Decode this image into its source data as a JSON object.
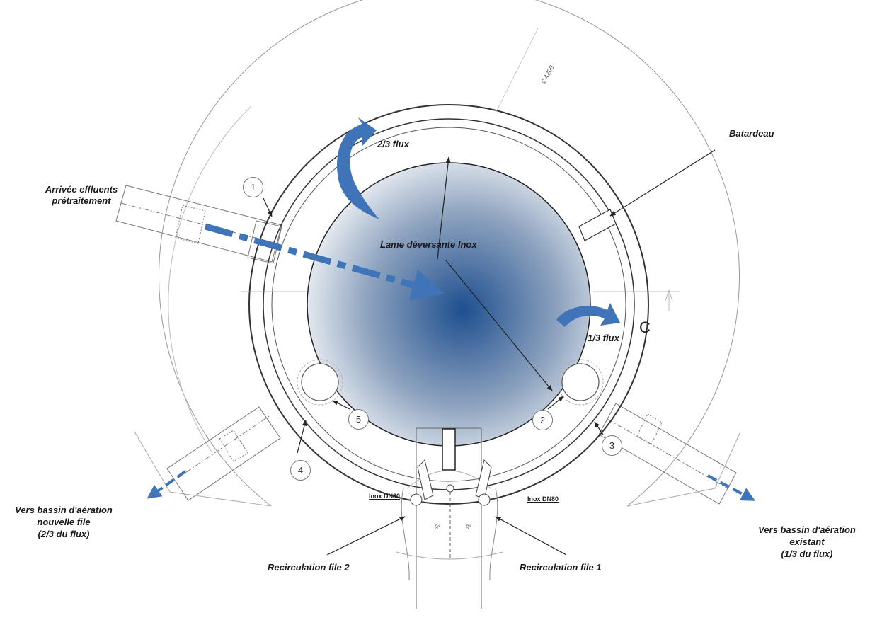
{
  "labels": {
    "arrivee_line1": "Arrivée effluents",
    "arrivee_line2": "prétraitement",
    "two_thirds_flux": "2/3 flux",
    "batardeau": "Batardeau",
    "lame": "Lame déversante Inox",
    "one_third_flux": "1/3 flux",
    "c_mark": "C",
    "inox_dn80_left": "Inox DN80",
    "inox_dn80_right": "Inox DN80",
    "vers_nouvelle_line1": "Vers bassin d'aération",
    "vers_nouvelle_line2": "nouvelle file",
    "vers_nouvelle_line3": "(2/3 du flux)",
    "vers_existant_line1": "Vers bassin d'aération",
    "vers_existant_line2": "existant",
    "vers_existant_line3": "(1/3 du flux)",
    "recirc_2": "Recirculation file 2",
    "recirc_1": "Recirculation file 1",
    "diameter": "∅4200",
    "angle_left": "9°",
    "angle_right": "9°"
  },
  "markers": [
    "1",
    "2",
    "3",
    "4",
    "5"
  ],
  "colors": {
    "flow_arrow": "#3f74b8",
    "basin_center": "#1e4f8f",
    "basin_edge": "#ffffff",
    "line": "#333333",
    "thin_line": "#888888"
  }
}
